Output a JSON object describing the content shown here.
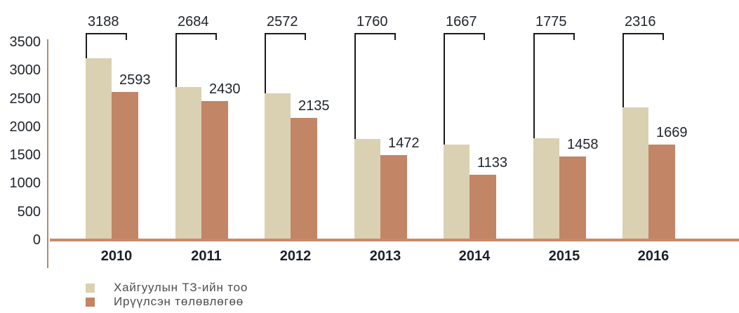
{
  "chart_data": {
    "type": "bar",
    "title": "",
    "xlabel": "",
    "ylabel": "",
    "categories": [
      "2010",
      "2011",
      "2012",
      "2013",
      "2014",
      "2015",
      "2016"
    ],
    "series": [
      {
        "name": "Хайгуулын ТЗ-ийн тоо",
        "color": "#d9d1b2",
        "values": [
          3188,
          2684,
          2572,
          1760,
          1667,
          1775,
          2316
        ],
        "value_label_position": "bracket-callout-above-group"
      },
      {
        "name": "Ирүүлсэн төлөвлөгөө",
        "color": "#c28565",
        "values": [
          2593,
          2430,
          2135,
          1472,
          1133,
          1458,
          1669
        ],
        "value_label_position": "above-right-of-bar"
      }
    ],
    "ylim": [
      0,
      3500
    ],
    "yticks": [
      3500,
      3000,
      2500,
      2000,
      1500,
      1000,
      500,
      0
    ],
    "grid": false,
    "legend_position": "bottom-left",
    "colors": {
      "y_axis_line": "#b28a70",
      "baseline": "#c68a6c",
      "callout_line": "#1a1a1a"
    }
  }
}
